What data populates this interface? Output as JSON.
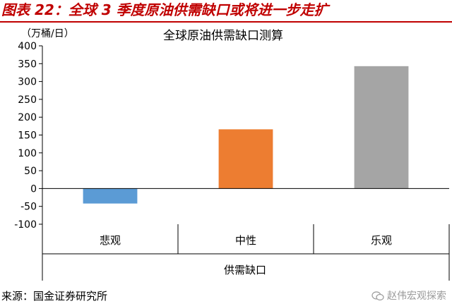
{
  "figure_title": "图表 22：全球 3 季度原油供需缺口或将进一步走扩",
  "source": "来源：国金证券研究所",
  "watermark": "赵伟宏观探索",
  "colors": {
    "title_red": "#c00000",
    "axis": "#000000",
    "grid_divider": "#000000"
  },
  "chart_data": {
    "type": "bar",
    "title": "全球原油供需缺口测算",
    "unit_label": "（万桶/日）",
    "xlabel": "供需缺口",
    "categories": [
      "悲观",
      "中性",
      "乐观"
    ],
    "values": [
      -42,
      166,
      343
    ],
    "bar_colors": [
      "#5b9bd5",
      "#ed7d31",
      "#a5a5a5"
    ],
    "ylim": [
      -100,
      400
    ],
    "yticks": [
      -100,
      -50,
      0,
      50,
      100,
      150,
      200,
      250,
      300,
      350,
      400
    ],
    "grid": false,
    "legend": "none"
  }
}
